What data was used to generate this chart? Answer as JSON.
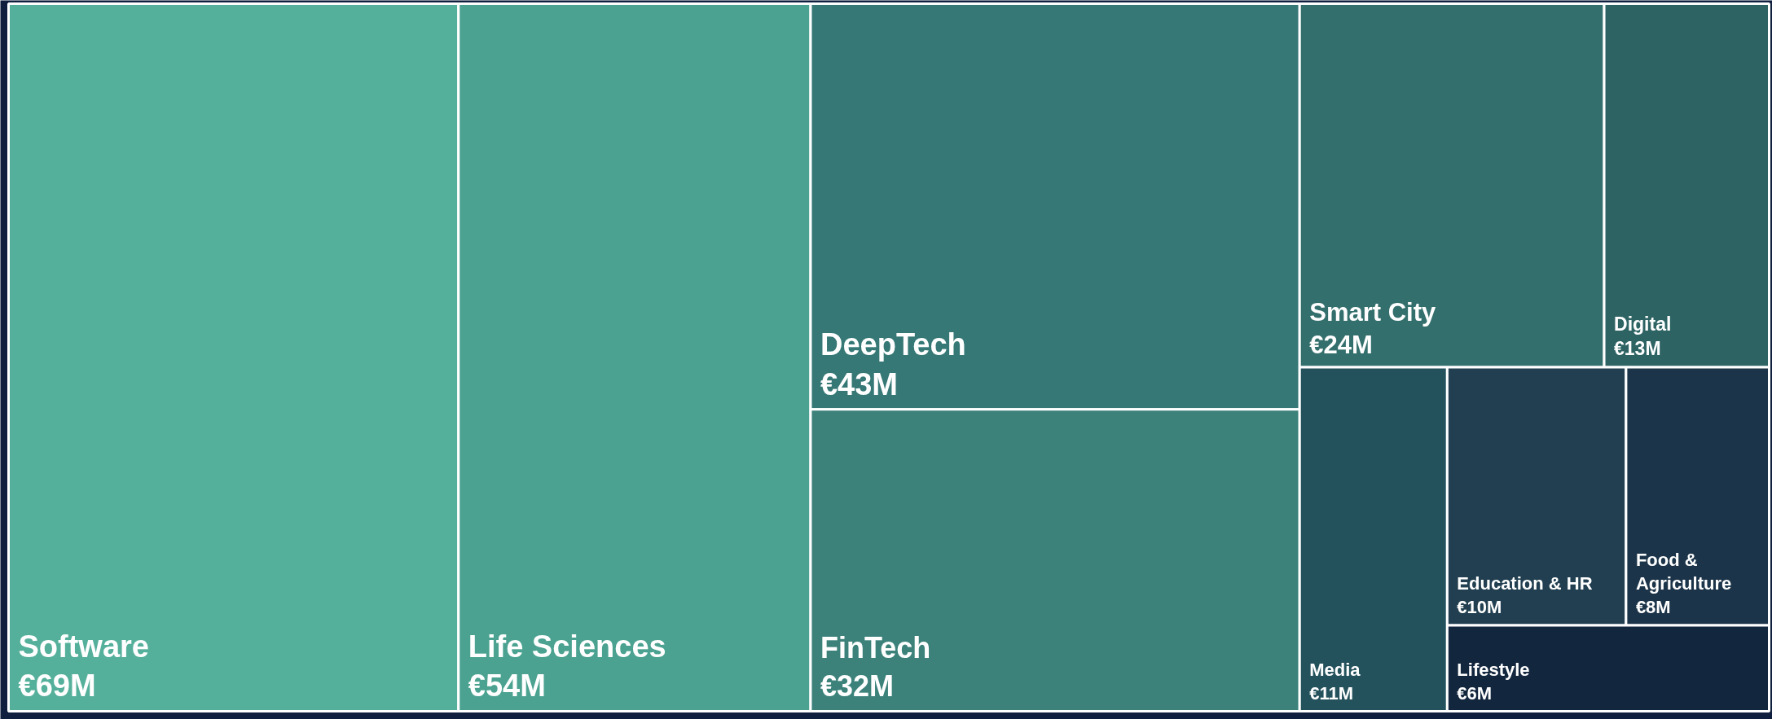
{
  "chart_data": {
    "type": "other",
    "categories": [
      "Software",
      "Life Sciences",
      "DeepTech",
      "FinTech",
      "Smart City",
      "Digital",
      "Media",
      "Education & HR",
      "Food & Agriculture",
      "Lifestyle"
    ],
    "values": [
      69,
      54,
      43,
      32,
      24,
      13,
      11,
      10,
      8,
      6
    ],
    "value_labels": [
      "€69M",
      "€54M",
      "€43M",
      "€32M",
      "€24M",
      "€13M",
      "€11M",
      "€10M",
      "€8M",
      "€6M"
    ],
    "colors": [
      "#55b09b",
      "#4ba290",
      "#367876",
      "#3c827b",
      "#336f6c",
      "#2e6364",
      "#24525c",
      "#213f50",
      "#1c3449",
      "#12263e"
    ]
  }
}
